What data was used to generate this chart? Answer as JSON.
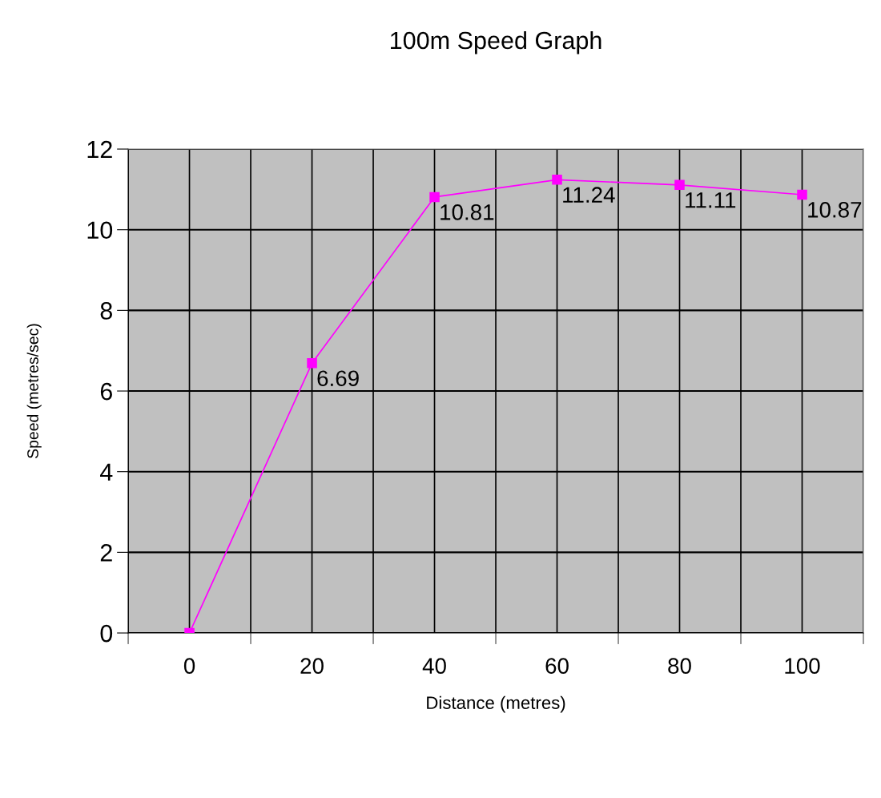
{
  "chart_data": {
    "type": "line",
    "title": "100m Speed Graph",
    "xlabel": "Distance (metres)",
    "ylabel": "Speed (metres/sec)",
    "categories": [
      "0",
      "20",
      "40",
      "60",
      "80",
      "100"
    ],
    "series": [
      {
        "color": "#ff00ff",
        "values": [
          0,
          6.69,
          10.81,
          11.24,
          11.11,
          10.87
        ],
        "value_labels": [
          null,
          "6.69",
          "10.81",
          "11.24",
          "11.11",
          "10.87"
        ]
      }
    ],
    "ylim": [
      0,
      12
    ],
    "yticks": [
      0,
      2,
      4,
      6,
      8,
      10,
      12
    ],
    "grid": true,
    "marker": "square",
    "line_style": "solid",
    "legend": false
  }
}
